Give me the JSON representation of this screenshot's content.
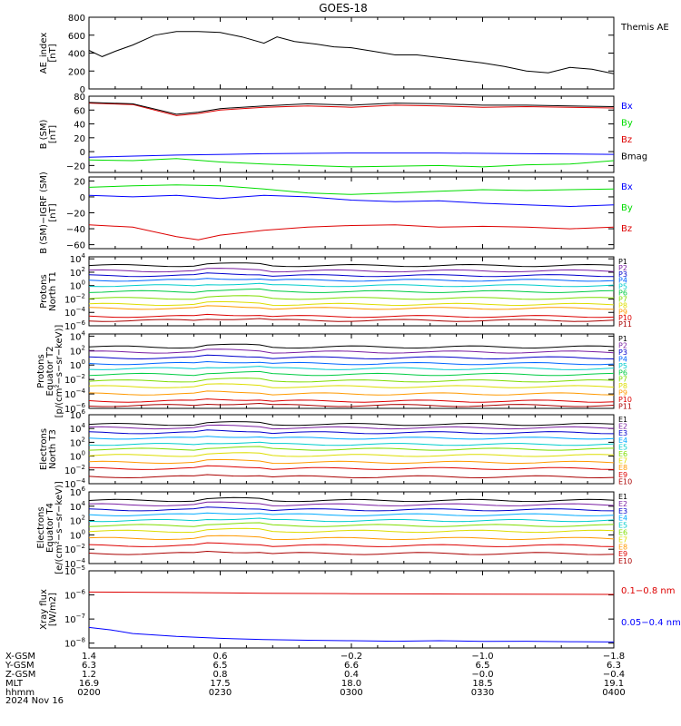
{
  "title": "GOES-18",
  "date_label": "2024 Nov 16",
  "ephemeris": {
    "row_labels": [
      "X-GSM",
      "Y-GSM",
      "Z-GSM",
      "MLT",
      "hhmm"
    ],
    "columns": [
      [
        "1.4",
        "6.3",
        "1.2",
        "16.9",
        "0200"
      ],
      [
        "0.6",
        "6.5",
        "0.8",
        "17.5",
        "0230"
      ],
      [
        "−0.2",
        "6.6",
        "0.4",
        "18.0",
        "0300"
      ],
      [
        "−1.0",
        "6.5",
        "−0.0",
        "18.5",
        "0330"
      ],
      [
        "−1.8",
        "6.3",
        "−0.4",
        "19.1",
        "0400"
      ]
    ]
  },
  "chart_data": [
    {
      "type": "line",
      "ylabel": [
        "AE_index",
        "[nT]"
      ],
      "yscale": "linear",
      "ylim": [
        0,
        800
      ],
      "yticks": [
        0,
        200,
        400,
        600,
        800
      ],
      "yticklabels": [
        "0",
        "200",
        "400",
        "600",
        "800"
      ],
      "xlim": [
        0,
        120
      ],
      "x_unit": "minutes after 0200",
      "series": [
        {
          "name": "Themis AE",
          "color": "#000000",
          "x": [
            0,
            3,
            6,
            10,
            15,
            20,
            25,
            30,
            35,
            40,
            43,
            47,
            52,
            56,
            60,
            65,
            70,
            75,
            80,
            85,
            90,
            95,
            100,
            105,
            110,
            115,
            120
          ],
          "y": [
            430,
            360,
            420,
            490,
            600,
            640,
            640,
            630,
            580,
            510,
            580,
            530,
            500,
            470,
            460,
            420,
            380,
            380,
            350,
            320,
            290,
            250,
            200,
            180,
            240,
            220,
            170
          ]
        }
      ]
    },
    {
      "type": "line",
      "ylabel": [
        "B (SM)",
        "[nT]"
      ],
      "yscale": "linear",
      "ylim": [
        -30,
        80
      ],
      "yticks": [
        -20,
        0,
        20,
        40,
        60,
        80
      ],
      "yticklabels": [
        "−20",
        "0",
        "20",
        "40",
        "60",
        "80"
      ],
      "xlim": [
        0,
        120
      ],
      "series": [
        {
          "name": "Bx",
          "color": "#0000ff",
          "x": [
            0,
            20,
            40,
            60,
            80,
            100,
            120
          ],
          "y": [
            -8,
            -5,
            -3,
            -2,
            -2,
            -3,
            -4
          ]
        },
        {
          "name": "By",
          "color": "#00dd00",
          "x": [
            0,
            10,
            20,
            30,
            40,
            50,
            60,
            70,
            80,
            90,
            100,
            110,
            120
          ],
          "y": [
            -12,
            -13,
            -10,
            -15,
            -18,
            -20,
            -22,
            -21,
            -20,
            -22,
            -19,
            -18,
            -13
          ]
        },
        {
          "name": "Bz",
          "color": "#dd0000",
          "x": [
            0,
            10,
            20,
            25,
            30,
            40,
            50,
            60,
            70,
            80,
            90,
            100,
            110,
            120
          ],
          "y": [
            70,
            68,
            52,
            55,
            60,
            64,
            66,
            64,
            67,
            66,
            64,
            65,
            64,
            63
          ]
        },
        {
          "name": "Bmag",
          "color": "#000000",
          "x": [
            0,
            10,
            20,
            25,
            30,
            40,
            50,
            60,
            70,
            80,
            90,
            100,
            110,
            120
          ],
          "y": [
            71,
            69,
            54,
            57,
            62,
            66,
            69,
            67,
            70,
            69,
            67,
            67,
            66,
            65
          ]
        }
      ]
    },
    {
      "type": "line",
      "ylabel": [
        "B (SM)−IGRF (SM)",
        "[nT]"
      ],
      "yscale": "linear",
      "ylim": [
        -65,
        25
      ],
      "yticks": [
        -60,
        -40,
        -20,
        0,
        20
      ],
      "yticklabels": [
        "−60",
        "−40",
        "−20",
        "0",
        "20"
      ],
      "xlim": [
        0,
        120
      ],
      "series": [
        {
          "name": "Bx",
          "color": "#0000ff",
          "x": [
            0,
            10,
            20,
            30,
            40,
            50,
            60,
            70,
            80,
            90,
            100,
            110,
            120
          ],
          "y": [
            2,
            0,
            2,
            -2,
            2,
            0,
            -4,
            -6,
            -5,
            -8,
            -10,
            -12,
            -10
          ]
        },
        {
          "name": "By",
          "color": "#00dd00",
          "x": [
            0,
            10,
            20,
            30,
            40,
            50,
            60,
            70,
            80,
            90,
            100,
            110,
            120
          ],
          "y": [
            12,
            14,
            15,
            14,
            10,
            5,
            3,
            5,
            7,
            9,
            8,
            9,
            10
          ]
        },
        {
          "name": "Bz",
          "color": "#dd0000",
          "x": [
            0,
            10,
            20,
            25,
            30,
            40,
            50,
            60,
            70,
            80,
            90,
            100,
            110,
            120
          ],
          "y": [
            -35,
            -38,
            -50,
            -54,
            -48,
            -42,
            -38,
            -36,
            -35,
            -38,
            -37,
            -38,
            -40,
            -38
          ]
        }
      ]
    },
    {
      "type": "line",
      "ylabel": [
        "Protons",
        "North T1"
      ],
      "yscale": "log",
      "ylim_exp": [
        -6,
        4.3
      ],
      "yticks_exp": [
        4,
        2,
        0,
        -2,
        -4,
        -6
      ],
      "xlim": [
        0,
        120
      ],
      "series_names": [
        "P1",
        "P2",
        "P3",
        "P4",
        "P5",
        "P6",
        "P7",
        "P8",
        "P9",
        "P10",
        "P11"
      ],
      "series_log10": [
        3,
        2.2,
        1.5,
        0.8,
        0,
        -0.9,
        -1.9,
        -2.8,
        -3.4,
        -4.6,
        -5.2
      ],
      "series_colors": [
        "#000000",
        "#7a1fa2",
        "#0000cc",
        "#0066ff",
        "#00cccc",
        "#00cc44",
        "#7fdd00",
        "#dddd00",
        "#ff9900",
        "#dd0000",
        "#aa0000"
      ]
    },
    {
      "type": "line",
      "ylabel": [
        "Protons",
        "Equator T2",
        "[p/(cm²−s−sr−keV)]"
      ],
      "yscale": "log",
      "ylim_exp": [
        -6,
        4.3
      ],
      "yticks_exp": [
        4,
        2,
        0,
        -2,
        -4,
        -6
      ],
      "xlim": [
        0,
        120
      ],
      "series_names": [
        "P1",
        "P2",
        "P3",
        "P4",
        "P5",
        "P6",
        "P7",
        "P8",
        "P9",
        "P10",
        "P11"
      ],
      "series_log10": [
        2.5,
        1.8,
        1.0,
        0.2,
        -0.5,
        -1.3,
        -2.2,
        -3.0,
        -4.0,
        -5.0,
        -5.6
      ],
      "series_colors": [
        "#000000",
        "#7a1fa2",
        "#0000cc",
        "#0066ff",
        "#00cccc",
        "#00cc44",
        "#7fdd00",
        "#dddd00",
        "#ff9900",
        "#dd0000",
        "#aa0000"
      ]
    },
    {
      "type": "line",
      "ylabel": [
        "Electrons",
        "North T3"
      ],
      "yscale": "log",
      "ylim_exp": [
        -4,
        6
      ],
      "yticks_exp": [
        6,
        4,
        2,
        0,
        -2,
        -4
      ],
      "xlim": [
        0,
        120
      ],
      "series_names": [
        "E1",
        "E2",
        "E3",
        "E4",
        "E5",
        "E6",
        "E7",
        "E8",
        "E9",
        "E10"
      ],
      "series_log10": [
        4.6,
        4.1,
        3.4,
        2.6,
        1.7,
        1.0,
        0.1,
        -0.9,
        -1.8,
        -3.0
      ],
      "series_colors": [
        "#000000",
        "#7a1fa2",
        "#0000cc",
        "#00aaff",
        "#00cccc",
        "#7fdd00",
        "#dddd00",
        "#ff9900",
        "#dd0000",
        "#aa0000"
      ]
    },
    {
      "type": "line",
      "ylabel": [
        "Electrons",
        "Equator T4",
        "[e/(cm²−s−sr−keV)]"
      ],
      "yscale": "log",
      "ylim_exp": [
        -4,
        6
      ],
      "yticks_exp": [
        6,
        4,
        2,
        0,
        -2,
        -4
      ],
      "xlim": [
        0,
        120
      ],
      "series_names": [
        "E1",
        "E2",
        "E3",
        "E4",
        "E5",
        "E6",
        "E7",
        "E8",
        "E9",
        "E10"
      ],
      "series_log10": [
        4.8,
        4.2,
        3.5,
        2.8,
        2.0,
        1.3,
        0.5,
        -0.5,
        -1.5,
        -2.6
      ],
      "series_colors": [
        "#000000",
        "#7a1fa2",
        "#0000cc",
        "#00aaff",
        "#00cccc",
        "#7fdd00",
        "#dddd00",
        "#ff9900",
        "#dd0000",
        "#aa0000"
      ]
    },
    {
      "type": "line",
      "ylabel": [
        "Xray flux",
        "[W/m2]"
      ],
      "yscale": "log",
      "ylim_exp": [
        -8.2,
        -5
      ],
      "yticks_exp": [
        -5,
        -6,
        -7,
        -8
      ],
      "xlim": [
        0,
        120
      ],
      "series": [
        {
          "name": "0.1−0.8 nm",
          "color": "#dd0000",
          "x": [
            0,
            20,
            40,
            60,
            80,
            100,
            120
          ],
          "y_log10": [
            -5.88,
            -5.9,
            -5.93,
            -5.95,
            -5.96,
            -5.97,
            -5.98
          ]
        },
        {
          "name": "0.05−0.4 nm",
          "color": "#0000ff",
          "x": [
            0,
            5,
            10,
            20,
            30,
            40,
            50,
            60,
            70,
            80,
            90,
            100,
            110,
            120
          ],
          "y_log10": [
            -7.35,
            -7.45,
            -7.6,
            -7.72,
            -7.8,
            -7.85,
            -7.88,
            -7.9,
            -7.92,
            -7.9,
            -7.93,
            -7.92,
            -7.94,
            -7.95
          ]
        }
      ]
    }
  ]
}
